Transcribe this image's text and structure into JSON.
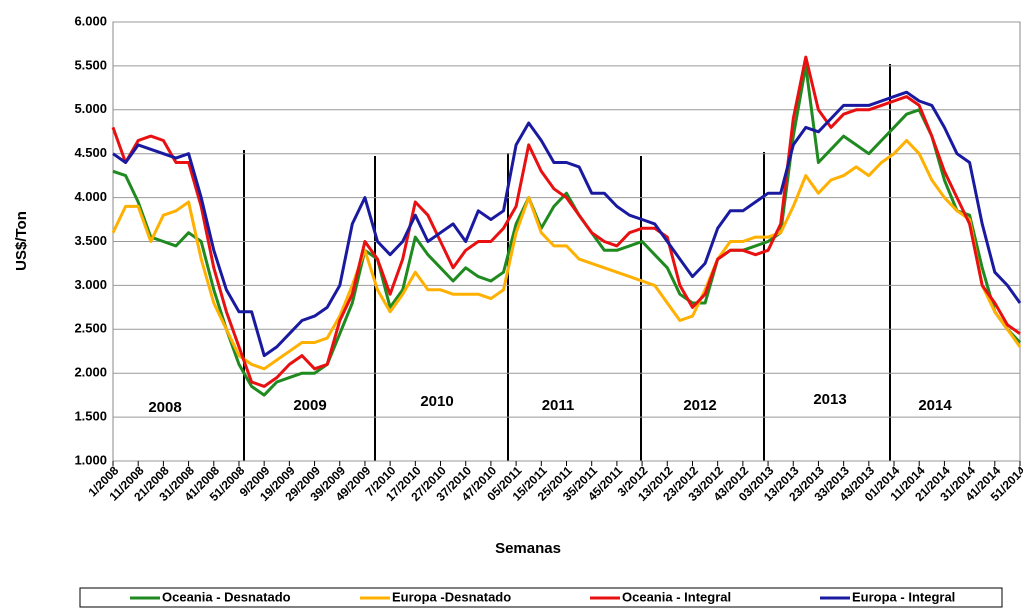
{
  "chart_data": {
    "type": "line",
    "x_label": "Semanas",
    "y_label": "US$/Ton",
    "categories": [
      "1/2008",
      null,
      "11/2008",
      null,
      "21/2008",
      null,
      "31/2008",
      null,
      "41/2008",
      null,
      "51/2008",
      null,
      "9/2009",
      null,
      "19/2009",
      null,
      "29/2009",
      null,
      "39/2009",
      null,
      "49/2009",
      null,
      "7/2010",
      null,
      "17/2010",
      null,
      "27/2010",
      null,
      "37/2010",
      null,
      "47/2010",
      null,
      "05/2011",
      null,
      "15/2011",
      null,
      "25/2011",
      null,
      "35/2011",
      null,
      "45/2011",
      null,
      "3/2012",
      null,
      "13/2012",
      null,
      "23/2012",
      null,
      "33/2012",
      null,
      "43/2012",
      null,
      "03/2013",
      null,
      "13/2013",
      null,
      "23/2013",
      null,
      "33/2013",
      null,
      "43/2013",
      null,
      "01/2014",
      null,
      "11/2014",
      null,
      "21/2014",
      null,
      "31/2014",
      null,
      "41/2014",
      null,
      "51/2014"
    ],
    "series": [
      {
        "name": "Oceania - Desnatado",
        "color": "#1f8a1f",
        "values": [
          4300,
          4250,
          3950,
          3550,
          3500,
          3450,
          3600,
          3500,
          2950,
          2500,
          2100,
          1850,
          1750,
          1900,
          1950,
          2000,
          2000,
          2100,
          2450,
          2800,
          3400,
          3300,
          2750,
          2950,
          3550,
          3350,
          3200,
          3050,
          3200,
          3100,
          3050,
          3150,
          3700,
          4000,
          3650,
          3900,
          4050,
          3800,
          3600,
          3400,
          3400,
          3450,
          3500,
          3350,
          3200,
          2900,
          2800,
          2800,
          3300,
          3400,
          3400,
          3450,
          3500,
          3600,
          4700,
          5500,
          4400,
          4550,
          4700,
          4600,
          4500,
          4650,
          4800,
          4950,
          5000,
          4700,
          4200,
          3850,
          3800,
          3200,
          2700,
          2500,
          2350
        ]
      },
      {
        "name": "Europa -Desnatado",
        "color": "#ffb000",
        "values": [
          3600,
          3900,
          3900,
          3500,
          3800,
          3850,
          3950,
          3300,
          2800,
          2500,
          2200,
          2100,
          2050,
          2150,
          2250,
          2350,
          2350,
          2400,
          2650,
          3000,
          3400,
          2950,
          2700,
          2900,
          3150,
          2950,
          2950,
          2900,
          2900,
          2900,
          2850,
          2950,
          3600,
          4000,
          3600,
          3450,
          3450,
          3300,
          3250,
          3200,
          3150,
          3100,
          3050,
          3000,
          2800,
          2600,
          2650,
          2950,
          3300,
          3500,
          3500,
          3550,
          3550,
          3600,
          3900,
          4250,
          4050,
          4200,
          4250,
          4350,
          4250,
          4400,
          4500,
          4650,
          4500,
          4200,
          4000,
          3850,
          3750,
          3000,
          2700,
          2500,
          2300
        ]
      },
      {
        "name": "Oceania - Integral",
        "color": "#e81010",
        "values": [
          4800,
          4400,
          4650,
          4700,
          4650,
          4400,
          4400,
          3900,
          3200,
          2700,
          2300,
          1900,
          1850,
          1950,
          2100,
          2200,
          2050,
          2100,
          2600,
          2900,
          3500,
          3300,
          2900,
          3300,
          3950,
          3800,
          3500,
          3200,
          3400,
          3500,
          3500,
          3650,
          3900,
          4600,
          4300,
          4100,
          4000,
          3800,
          3600,
          3500,
          3450,
          3600,
          3650,
          3650,
          3550,
          3000,
          2750,
          2900,
          3300,
          3400,
          3400,
          3350,
          3400,
          3700,
          4900,
          5600,
          5000,
          4800,
          4950,
          5000,
          5000,
          5050,
          5100,
          5150,
          5050,
          4700,
          4300,
          4000,
          3700,
          3000,
          2800,
          2550,
          2450
        ]
      },
      {
        "name": "Europa - Integral",
        "color": "#1a1aa0",
        "values": [
          4500,
          4400,
          4600,
          4550,
          4500,
          4450,
          4500,
          4000,
          3400,
          2950,
          2700,
          2700,
          2200,
          2300,
          2450,
          2600,
          2650,
          2750,
          3000,
          3700,
          4000,
          3500,
          3350,
          3500,
          3800,
          3500,
          3600,
          3700,
          3500,
          3850,
          3750,
          3850,
          4600,
          4850,
          4650,
          4400,
          4400,
          4350,
          4050,
          4050,
          3900,
          3800,
          3750,
          3700,
          3500,
          3300,
          3100,
          3250,
          3650,
          3850,
          3850,
          3950,
          4050,
          4050,
          4600,
          4800,
          4750,
          4900,
          5050,
          5050,
          5050,
          5100,
          5150,
          5200,
          5100,
          5050,
          4800,
          4500,
          4400,
          3700,
          3150,
          3000,
          2800
        ]
      }
    ],
    "ylim": [
      1000,
      6000
    ],
    "yticks": [
      {
        "value": 1000,
        "label": "1.000"
      },
      {
        "value": 1500,
        "label": "1.500"
      },
      {
        "value": 2000,
        "label": "2.000"
      },
      {
        "value": 2500,
        "label": "2.500"
      },
      {
        "value": 3000,
        "label": "3.000"
      },
      {
        "value": 3500,
        "label": "3.500"
      },
      {
        "value": 4000,
        "label": "4.000"
      },
      {
        "value": 4500,
        "label": "4.500"
      },
      {
        "value": 5000,
        "label": "5.000"
      },
      {
        "value": 5500,
        "label": "5.500"
      },
      {
        "value": 6000,
        "label": "6.000"
      }
    ],
    "grid": true,
    "legend": "bottom",
    "annotations": [
      "2008",
      "2009",
      "2010",
      "2011",
      "2012",
      "2013",
      "2014"
    ]
  }
}
